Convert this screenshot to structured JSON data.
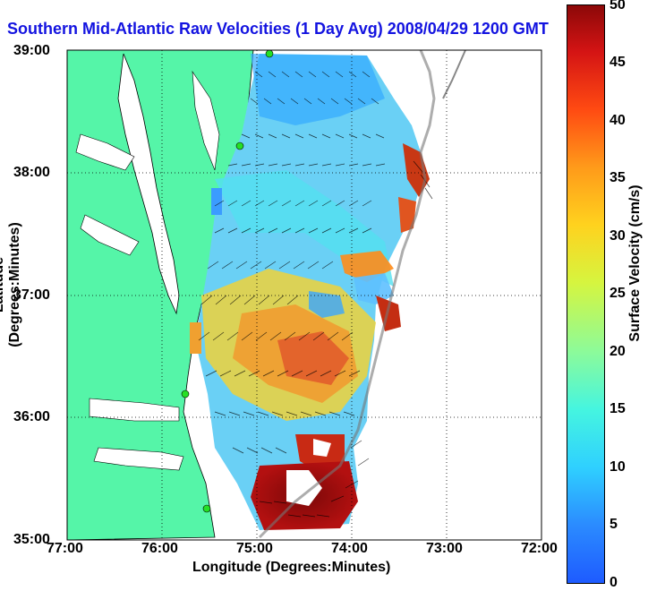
{
  "title": "Southern Mid-Atlantic Raw Velocities (1 Day Avg) 2008/04/29 1200 GMT",
  "x_axis": {
    "label": "Longitude (Degrees:Minutes)",
    "ticks": [
      "77:00",
      "76:00",
      "75:00",
      "74:00",
      "73:00",
      "72:00"
    ]
  },
  "y_axis": {
    "label": "Latitude (Degrees:Minutes)",
    "ticks": [
      "39:00",
      "38:00",
      "37:00",
      "36:00",
      "35:00"
    ]
  },
  "colorbar": {
    "label": "Surface Velocity (cm/s)",
    "ticks": [
      "50",
      "45",
      "40",
      "35",
      "30",
      "25",
      "20",
      "15",
      "10",
      "5",
      "0"
    ],
    "range": [
      0,
      50
    ]
  },
  "colors": {
    "land": "#55f5a8",
    "title": "#1313e0",
    "grid": "#000000"
  },
  "map_extent": {
    "lon_range": [
      -77,
      -72
    ],
    "lat_range": [
      35,
      39
    ]
  }
}
